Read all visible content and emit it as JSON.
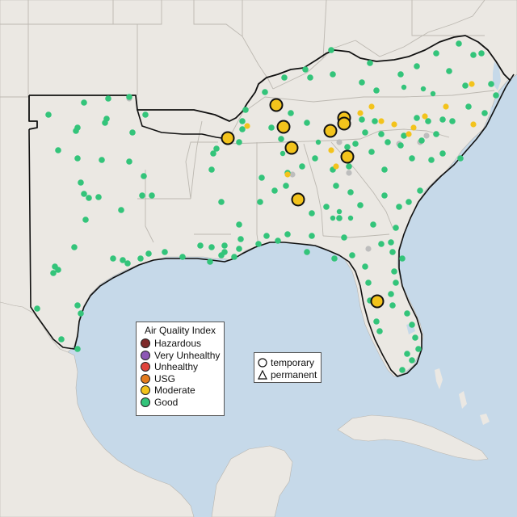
{
  "legend": {
    "title": "Air Quality Index",
    "categories": [
      {
        "label": "Hazardous",
        "color": "#7e2a2a"
      },
      {
        "label": "Very Unhealthy",
        "color": "#8d57b5"
      },
      {
        "label": "Unhealthy",
        "color": "#e0443c"
      },
      {
        "label": "USG",
        "color": "#e47b1d"
      },
      {
        "label": "Moderate",
        "color": "#f3c31c"
      },
      {
        "label": "Good",
        "color": "#33c47a"
      }
    ]
  },
  "monitor_types": [
    {
      "label": "temporary",
      "shape": "circle"
    },
    {
      "label": "permanent",
      "shape": "triangle"
    }
  ],
  "colors": {
    "water": "#c6d9e9",
    "land": "#ebe8e3",
    "region_outline": "#111111",
    "no_data_station": "#bdbdbd"
  }
}
